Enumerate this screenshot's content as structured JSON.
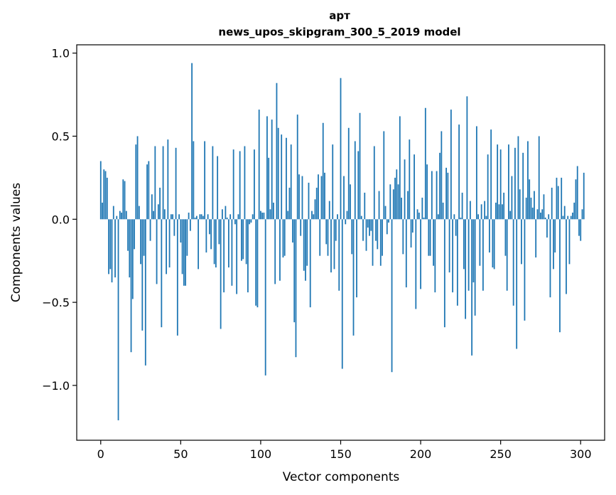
{
  "chart_data": {
    "type": "bar",
    "title": "арт",
    "subtitle": "news_upos_skipgram_300_5_2019 model",
    "xlabel": "Vector components",
    "ylabel": "Components values",
    "xlim": [
      -15,
      315
    ],
    "ylim": [
      -1.33,
      1.05
    ],
    "xticks": [
      0,
      50,
      100,
      150,
      200,
      250,
      300
    ],
    "xtick_labels": [
      "0",
      "50",
      "100",
      "150",
      "200",
      "250",
      "300"
    ],
    "yticks": [
      1.0,
      0.5,
      0.0,
      -0.5,
      -1.0
    ],
    "ytick_labels": [
      "1.0",
      "0.5",
      "0.0",
      "−0.5",
      "−1.0"
    ],
    "bar_color": "#1f77b4",
    "grid": false,
    "series": [
      {
        "name": "арт",
        "values": [
          0.35,
          0.1,
          0.3,
          0.29,
          0.25,
          -0.33,
          -0.3,
          -0.38,
          0.08,
          -0.35,
          0.02,
          -1.21,
          0.05,
          0.04,
          0.24,
          0.23,
          0.05,
          -0.19,
          -0.35,
          -0.8,
          -0.48,
          -0.18,
          0.45,
          0.5,
          0.08,
          -0.27,
          -0.67,
          -0.22,
          -0.88,
          0.33,
          0.35,
          -0.13,
          0.15,
          0.05,
          0.44,
          -0.39,
          0.09,
          0.19,
          -0.65,
          0.44,
          0.06,
          -0.33,
          0.48,
          -0.29,
          0.03,
          0.03,
          -0.1,
          0.43,
          -0.7,
          0.03,
          -0.14,
          -0.33,
          -0.4,
          -0.4,
          -0.22,
          0.04,
          -0.07,
          0.94,
          0.47,
          0.01,
          0.02,
          -0.3,
          0.03,
          0.03,
          0.02,
          0.47,
          -0.2,
          0.03,
          -0.09,
          -0.18,
          0.44,
          -0.27,
          -0.29,
          0.38,
          -0.15,
          -0.66,
          0.06,
          -0.44,
          0.08,
          0.01,
          -0.29,
          0.03,
          -0.4,
          0.42,
          -0.03,
          -0.45,
          0.03,
          0.41,
          -0.25,
          -0.24,
          0.44,
          -0.27,
          -0.44,
          -0.03,
          -0.02,
          0.03,
          0.42,
          -0.52,
          -0.53,
          0.66,
          0.05,
          0.04,
          0.04,
          -0.94,
          0.62,
          0.37,
          0.06,
          0.6,
          0.1,
          -0.39,
          0.82,
          0.55,
          -0.37,
          0.51,
          -0.23,
          -0.22,
          0.49,
          0.05,
          0.19,
          0.45,
          -0.14,
          -0.62,
          -0.83,
          0.63,
          0.27,
          -0.1,
          0.26,
          -0.31,
          -0.37,
          -0.28,
          0.22,
          -0.53,
          0.05,
          0.03,
          0.12,
          0.19,
          0.27,
          -0.22,
          0.26,
          0.58,
          0.28,
          -0.15,
          -0.22,
          0.11,
          -0.32,
          0.45,
          -0.3,
          -0.13,
          0.03,
          -0.43,
          0.85,
          -0.9,
          0.26,
          -0.03,
          0.05,
          0.55,
          0.21,
          -0.21,
          -0.7,
          0.47,
          -0.47,
          0.41,
          0.64,
          0.02,
          -0.13,
          0.16,
          -0.19,
          -0.05,
          -0.1,
          -0.07,
          -0.28,
          0.44,
          -0.13,
          -0.18,
          0.17,
          -0.28,
          -0.22,
          0.53,
          0.08,
          -0.09,
          -0.02,
          0.21,
          -0.92,
          0.18,
          0.25,
          0.3,
          0.21,
          0.62,
          0.13,
          -0.21,
          0.36,
          -0.41,
          0.17,
          0.48,
          -0.17,
          -0.08,
          0.39,
          -0.54,
          0.06,
          0.04,
          -0.42,
          0.13,
          0.01,
          0.67,
          0.33,
          -0.22,
          -0.22,
          0.29,
          -0.28,
          -0.44,
          0.29,
          0.03,
          0.4,
          0.53,
          0.1,
          -0.65,
          0.31,
          0.28,
          -0.32,
          0.66,
          -0.44,
          0.03,
          -0.1,
          -0.52,
          0.57,
          0.01,
          0.16,
          -0.3,
          -0.6,
          0.74,
          -0.43,
          0.11,
          -0.82,
          -0.38,
          -0.58,
          0.56,
          0.03,
          -0.28,
          0.09,
          -0.43,
          0.11,
          0.02,
          0.39,
          -0.2,
          0.54,
          -0.29,
          -0.3,
          0.1,
          0.45,
          0.09,
          0.42,
          0.09,
          0.16,
          -0.22,
          -0.43,
          0.45,
          0.05,
          0.26,
          -0.52,
          0.43,
          -0.78,
          0.5,
          0.18,
          -0.27,
          0.4,
          -0.61,
          0.13,
          0.47,
          0.24,
          0.13,
          0.07,
          0.17,
          -0.23,
          0.06,
          0.5,
          0.04,
          0.06,
          0.15,
          0.01,
          -0.11,
          0.03,
          -0.47,
          0.19,
          -0.3,
          -0.2,
          0.25,
          0.2,
          -0.68,
          0.25,
          0.02,
          0.08,
          -0.45,
          0.02,
          -0.27,
          0.02,
          0.04,
          0.1,
          0.24,
          0.32,
          -0.1,
          -0.13,
          0.06,
          0.28
        ]
      }
    ]
  }
}
